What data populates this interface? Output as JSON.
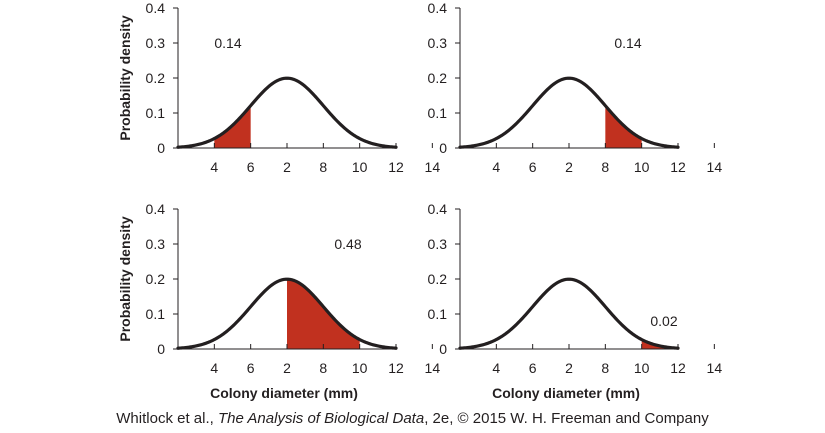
{
  "chart_data": [
    {
      "type": "area",
      "x_ticks": [
        "4",
        "6",
        "2",
        "8",
        "10",
        "12",
        "14"
      ],
      "y_ticks": [
        "0",
        "0.1",
        "0.2",
        "0.3",
        "0.4"
      ],
      "ylabel": "Probability density",
      "xlabel": "",
      "xlim": [
        2,
        14
      ],
      "ylim": [
        0,
        0.4
      ],
      "curve": {
        "distribution": "normal",
        "mean": 8,
        "sd": 2
      },
      "shaded_region": {
        "from": 4,
        "to": 6
      },
      "area_label": "0.14",
      "colors": {
        "curve": "#231f20",
        "shade": "#c1311f"
      }
    },
    {
      "type": "area",
      "x_ticks": [
        "4",
        "6",
        "2",
        "8",
        "10",
        "12",
        "14"
      ],
      "y_ticks": [
        "0",
        "0.1",
        "0.2",
        "0.3",
        "0.4"
      ],
      "ylabel": "",
      "xlabel": "",
      "xlim": [
        2,
        14
      ],
      "ylim": [
        0,
        0.4
      ],
      "curve": {
        "distribution": "normal",
        "mean": 8,
        "sd": 2
      },
      "shaded_region": {
        "from": 10,
        "to": 12
      },
      "area_label": "0.14",
      "colors": {
        "curve": "#231f20",
        "shade": "#c1311f"
      }
    },
    {
      "type": "area",
      "x_ticks": [
        "4",
        "6",
        "2",
        "8",
        "10",
        "12",
        "14"
      ],
      "y_ticks": [
        "0",
        "0.1",
        "0.2",
        "0.3",
        "0.4"
      ],
      "ylabel": "Probability density",
      "xlabel": "Colony diameter (mm)",
      "xlim": [
        2,
        14
      ],
      "ylim": [
        0,
        0.4
      ],
      "curve": {
        "distribution": "normal",
        "mean": 8,
        "sd": 2
      },
      "shaded_region": {
        "from": 8,
        "to": 12
      },
      "area_label": "0.48",
      "colors": {
        "curve": "#231f20",
        "shade": "#c1311f"
      }
    },
    {
      "type": "area",
      "x_ticks": [
        "4",
        "6",
        "2",
        "8",
        "10",
        "12",
        "14"
      ],
      "y_ticks": [
        "0",
        "0.1",
        "0.2",
        "0.3",
        "0.4"
      ],
      "ylabel": "",
      "xlabel": "Colony diameter (mm)",
      "xlim": [
        2,
        14
      ],
      "ylim": [
        0,
        0.4
      ],
      "curve": {
        "distribution": "normal",
        "mean": 8,
        "sd": 2
      },
      "shaded_region": {
        "from": 12,
        "to": 14
      },
      "area_label": "0.02",
      "colors": {
        "curve": "#231f20",
        "shade": "#c1311f"
      }
    }
  ],
  "caption": {
    "prefix": "Whitlock et al., ",
    "title": "The Analysis of Biological Data",
    "suffix": ", 2e, © 2015 W. H. Freeman and Company"
  }
}
